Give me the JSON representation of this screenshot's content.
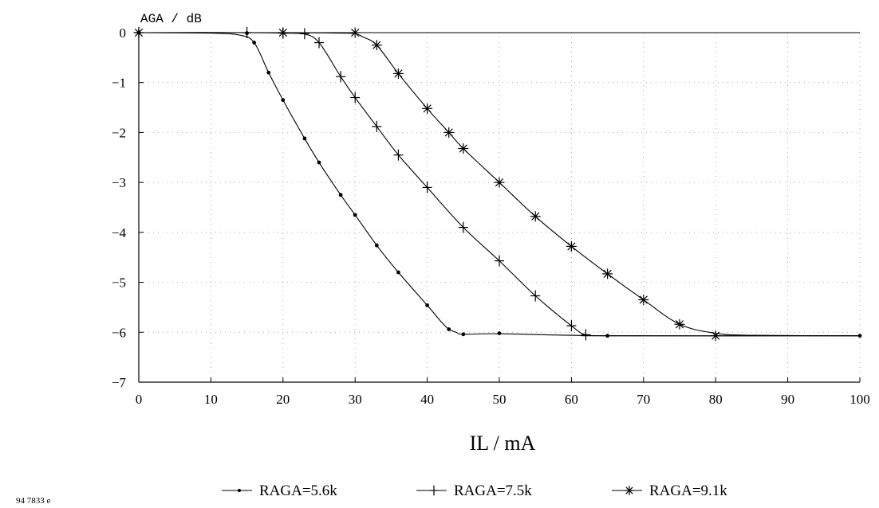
{
  "figure_id": "94 7833 e",
  "chart_data": {
    "type": "line",
    "ylabel": "AGA / dB",
    "xlabel": "IL / mA",
    "xlim": [
      0,
      100
    ],
    "ylim": [
      -7,
      0
    ],
    "x_ticks": [
      0,
      10,
      20,
      30,
      40,
      50,
      60,
      70,
      80,
      90,
      100
    ],
    "y_ticks": [
      0,
      -1,
      -2,
      -3,
      -4,
      -5,
      -6,
      -7
    ],
    "grid": true,
    "legend_position": "bottom",
    "series": [
      {
        "name": "RAGA=5.6k",
        "marker": "dot",
        "curve": [
          [
            0,
            0
          ],
          [
            10,
            -0.01
          ],
          [
            14,
            -0.05
          ],
          [
            16,
            -0.2
          ],
          [
            18,
            -0.8
          ],
          [
            20,
            -1.35
          ],
          [
            23,
            -2.12
          ],
          [
            25,
            -2.6
          ],
          [
            28,
            -3.25
          ],
          [
            30,
            -3.65
          ],
          [
            33,
            -4.26
          ],
          [
            36,
            -4.8
          ],
          [
            40,
            -5.46
          ],
          [
            42,
            -5.8
          ],
          [
            43,
            -5.94
          ],
          [
            44,
            -6.0
          ],
          [
            45,
            -6.04
          ],
          [
            50,
            -6.03
          ],
          [
            65,
            -6.07
          ],
          [
            100,
            -6.07
          ]
        ],
        "markers": [
          [
            0,
            0
          ],
          [
            15,
            -0.01
          ],
          [
            16,
            -0.2
          ],
          [
            18,
            -0.8
          ],
          [
            20,
            -1.35
          ],
          [
            23,
            -2.12
          ],
          [
            25,
            -2.6
          ],
          [
            28,
            -3.25
          ],
          [
            30,
            -3.65
          ],
          [
            33,
            -4.26
          ],
          [
            36,
            -4.8
          ],
          [
            40,
            -5.46
          ],
          [
            43,
            -5.94
          ],
          [
            45,
            -6.04
          ],
          [
            50,
            -6.02
          ],
          [
            65,
            -6.07
          ],
          [
            100,
            -6.07
          ]
        ]
      },
      {
        "name": "RAGA=7.5k",
        "marker": "plus",
        "curve": [
          [
            0,
            0
          ],
          [
            15,
            0
          ],
          [
            20,
            -0.01
          ],
          [
            23,
            -0.03
          ],
          [
            25,
            -0.2
          ],
          [
            28,
            -0.88
          ],
          [
            30,
            -1.3
          ],
          [
            33,
            -1.88
          ],
          [
            36,
            -2.45
          ],
          [
            40,
            -3.1
          ],
          [
            45,
            -3.9
          ],
          [
            50,
            -4.57
          ],
          [
            55,
            -5.27
          ],
          [
            60,
            -5.87
          ],
          [
            62,
            -6.05
          ],
          [
            65,
            -6.07
          ],
          [
            100,
            -6.07
          ]
        ],
        "markers": [
          [
            0,
            0
          ],
          [
            15,
            0
          ],
          [
            20,
            -0.01
          ],
          [
            23,
            -0.02
          ],
          [
            25,
            -0.2
          ],
          [
            28,
            -0.88
          ],
          [
            30,
            -1.3
          ],
          [
            33,
            -1.88
          ],
          [
            36,
            -2.45
          ],
          [
            40,
            -3.1
          ],
          [
            45,
            -3.9
          ],
          [
            50,
            -4.57
          ],
          [
            55,
            -5.27
          ],
          [
            60,
            -5.87
          ],
          [
            62,
            -6.05
          ]
        ]
      },
      {
        "name": "RAGA=9.1k",
        "marker": "asterisk",
        "curve": [
          [
            0,
            0
          ],
          [
            20,
            0
          ],
          [
            28,
            -0.01
          ],
          [
            30,
            -0.02
          ],
          [
            31,
            -0.08
          ],
          [
            33,
            -0.25
          ],
          [
            36,
            -0.82
          ],
          [
            40,
            -1.52
          ],
          [
            43,
            -2.0
          ],
          [
            45,
            -2.32
          ],
          [
            50,
            -3.0
          ],
          [
            55,
            -3.68
          ],
          [
            60,
            -4.28
          ],
          [
            65,
            -4.83
          ],
          [
            70,
            -5.35
          ],
          [
            75,
            -5.84
          ],
          [
            80,
            -6.02
          ],
          [
            85,
            -6.06
          ],
          [
            100,
            -6.07
          ]
        ],
        "markers": [
          [
            0,
            0
          ],
          [
            20,
            0
          ],
          [
            30,
            0
          ],
          [
            33,
            -0.25
          ],
          [
            36,
            -0.82
          ],
          [
            40,
            -1.52
          ],
          [
            43,
            -2.0
          ],
          [
            45,
            -2.32
          ],
          [
            50,
            -3.0
          ],
          [
            55,
            -3.68
          ],
          [
            60,
            -4.28
          ],
          [
            65,
            -4.83
          ],
          [
            70,
            -5.35
          ],
          [
            75,
            -5.84
          ],
          [
            80,
            -6.07
          ]
        ]
      }
    ]
  }
}
